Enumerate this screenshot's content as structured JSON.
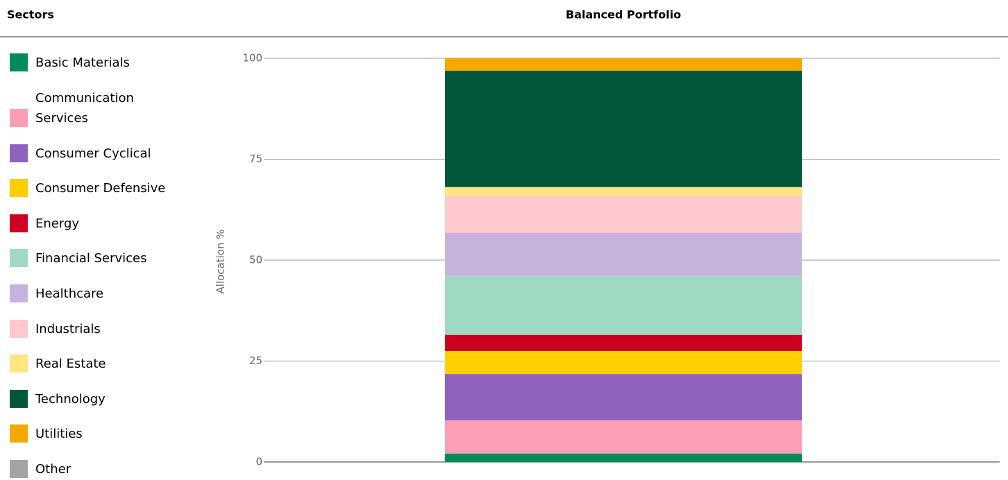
{
  "chart_data": {
    "type": "bar",
    "stacked": true,
    "legend_title": "Sectors",
    "categories": [
      "Balanced Portfolio"
    ],
    "y_label": "Allocation %",
    "ylim": [
      0,
      100
    ],
    "yticks": [
      0,
      25,
      50,
      75,
      100
    ],
    "grid": true,
    "series": [
      {
        "name": "Basic Materials",
        "color": "#008c5a",
        "values": [
          2.1
        ]
      },
      {
        "name": "Communication Services",
        "color": "#fc9eb5",
        "values": [
          8.2
        ]
      },
      {
        "name": "Consumer Cyclical",
        "color": "#8f63bd",
        "values": [
          11.5
        ]
      },
      {
        "name": "Consumer Defensive",
        "color": "#ffce00",
        "values": [
          5.7
        ]
      },
      {
        "name": "Energy",
        "color": "#ce0021",
        "values": [
          4.0
        ]
      },
      {
        "name": "Financial Services",
        "color": "#a0d9c1",
        "values": [
          14.6
        ]
      },
      {
        "name": "Healthcare",
        "color": "#c7b2dd",
        "values": [
          10.7
        ]
      },
      {
        "name": "Industrials",
        "color": "#ffc9cd",
        "values": [
          9.1
        ]
      },
      {
        "name": "Real Estate",
        "color": "#ffe680",
        "values": [
          2.2
        ]
      },
      {
        "name": "Technology",
        "color": "#00573c",
        "values": [
          28.8
        ]
      },
      {
        "name": "Utilities",
        "color": "#f4a901",
        "values": [
          3.1
        ]
      },
      {
        "name": "Other",
        "color": "#a3a3a3",
        "values": [
          0
        ]
      }
    ]
  }
}
